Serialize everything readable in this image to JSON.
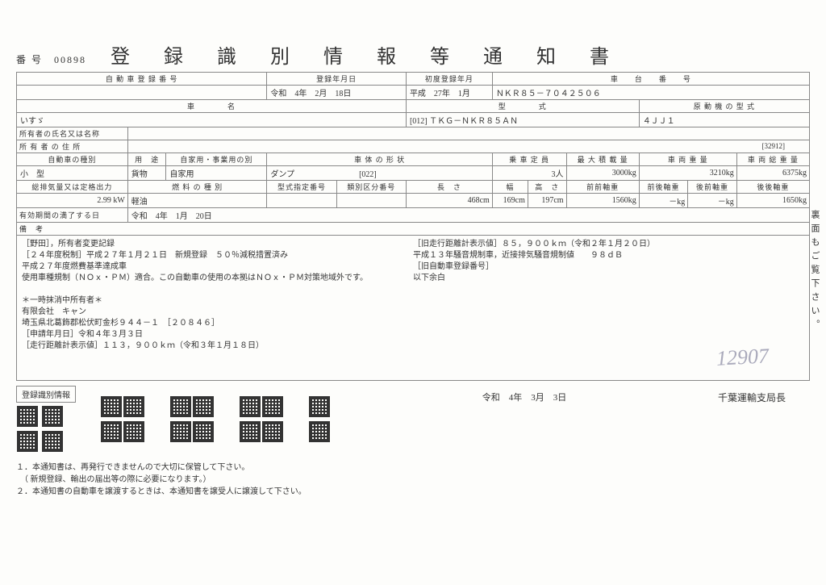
{
  "header": {
    "bango_label": "番 号",
    "bango": "00898",
    "title": "登 録 識 別 情 報 等 通 知 書"
  },
  "row1": {
    "reg_no_label": "自 動 車 登 録 番 号",
    "reg_date_label": "登録年月日",
    "reg_date": "令和　4年　2月　18日",
    "first_reg_label": "初度登録年月",
    "first_reg": "平成　27年　1月",
    "chassis_label": "車　　台　　番　　号",
    "chassis": "ＮＫＲ８５－７０４２５０６"
  },
  "row2": {
    "name_label": "車　　　　名",
    "name": "いすゞ",
    "type_label": "型　　　　式",
    "type_code": "[012]",
    "type": "ＴＫＧ－ＮＫＲ８５ＡＮ",
    "engine_label": "原 動 機 の 型 式",
    "engine": "４ＪＪ１"
  },
  "owner_name_label": "所有者の氏名又は名称",
  "owner_addr_label": "所 有 者 の 住 所",
  "addr_code": "[32912]",
  "row3": {
    "kind_label": "自動車の種別",
    "kind": "小　型",
    "use_label": "用　途",
    "use": "貨物",
    "private_label": "自家用・事業用の別",
    "private": "自家用",
    "body_label": "車 体 の 形 状",
    "body_code": "[022]",
    "body": "ダンプ",
    "capacity_label": "乗 車 定 員",
    "capacity": "3人",
    "max_load_label": "最 大 積 載 量",
    "max_load": "3000kg",
    "weight_label": "車 両 重 量",
    "weight": "3210kg",
    "gross_label": "車 両 総 重 量",
    "gross": "6375kg"
  },
  "row4": {
    "disp_label": "総排気量又は定格出力",
    "disp": "2.99 kW",
    "fuel_label": "燃 料 の 種 別",
    "fuel": "軽油",
    "type_no_label": "型式指定番号",
    "class_no_label": "類別区分番号",
    "len_label": "長　さ",
    "len": "468cm",
    "wid_label": "幅",
    "wid": "169cm",
    "hei_label": "高　さ",
    "hei": "197cm",
    "ff_label": "前前軸重",
    "ff": "1560kg",
    "fr_label": "前後軸重",
    "fr": "－kg",
    "rf_label": "後前軸重",
    "rf": "－kg",
    "rr_label": "後後軸重",
    "rr": "1650kg"
  },
  "expiry_label": "有効期間の満了する日",
  "expiry": "令和　4年　1月　20日",
  "remarks_label": "備　考",
  "remarks_left": [
    "［野田］，所有者変更記録",
    "［２４年度税制］平成２７年１月２１日　新規登録　５０％減税措置済み",
    "平成２７年度燃費基準達成車",
    "使用車種規制（ＮＯｘ・ＰＭ）適合。この自動車の使用の本拠はＮＯｘ・ＰＭ対策地域外です。",
    "",
    "＊一時抹消中所有者＊",
    "有限会社　キャン",
    "埼玉県北葛飾郡松伏町金杉９４４－１　［２０８４６］",
    "［申請年月日］令和４年３月３日",
    "［走行距離計表示値］１１３，９００ｋｍ（令和３年１月１８日）"
  ],
  "remarks_right": [
    "［旧走行距離計表示値］８５，９００ｋｍ（令和２年１月２０日）",
    "平成１３年騒音規制車，近接排気騒音規制値　　９８ｄＢ",
    "［旧自動車登録番号］",
    "以下余白"
  ],
  "handwrite": "12907",
  "qr_label": "登録識別情報",
  "footer_date": "令和　4年　3月　3日",
  "issuer": "千葉運輸支局長",
  "side_note": "裏面もご覧下さい。",
  "notes": [
    "１．本通知書は、再発行できませんので大切に保管して下さい。",
    "　（ 新規登録、輸出の届出等の際に必要になります。）",
    "２．本通知書の自動車を譲渡するときは、本通知書を譲受人に譲渡して下さい。"
  ],
  "colors": {
    "border": "#888888",
    "text": "#333333",
    "bg": "#fdfdfb"
  }
}
